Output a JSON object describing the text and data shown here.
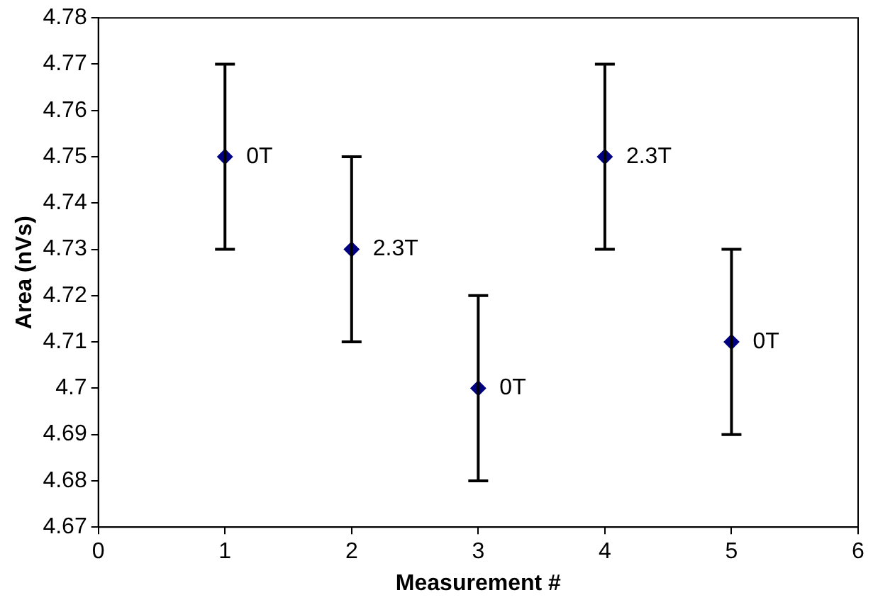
{
  "chart_data": {
    "type": "scatter",
    "xlabel": "Measurement #",
    "ylabel": "Area (nVs)",
    "x": [
      1,
      2,
      3,
      4,
      5
    ],
    "series": [
      {
        "color": "#000080",
        "values": [
          4.75,
          4.73,
          4.7,
          4.75,
          4.71
        ],
        "errors": [
          0.02,
          0.02,
          0.02,
          0.02,
          0.02
        ]
      }
    ],
    "annotations": [
      {
        "text": "0T",
        "x": 1,
        "y": 4.75
      },
      {
        "text": "2.3T",
        "x": 2,
        "y": 4.73
      },
      {
        "text": "0T",
        "x": 3,
        "y": 4.7
      },
      {
        "text": "2.3T",
        "x": 4,
        "y": 4.75
      },
      {
        "text": "0T",
        "x": 5,
        "y": 4.71
      }
    ],
    "xlim": [
      0,
      6
    ],
    "xticks": [
      0,
      1,
      2,
      3,
      4,
      5,
      6
    ],
    "ylim": [
      4.67,
      4.78
    ],
    "yticks": [
      4.67,
      4.68,
      4.69,
      4.7,
      4.71,
      4.72,
      4.73,
      4.74,
      4.75,
      4.76,
      4.77,
      4.78
    ],
    "grid": false,
    "legend": false,
    "marker": "diamond"
  }
}
